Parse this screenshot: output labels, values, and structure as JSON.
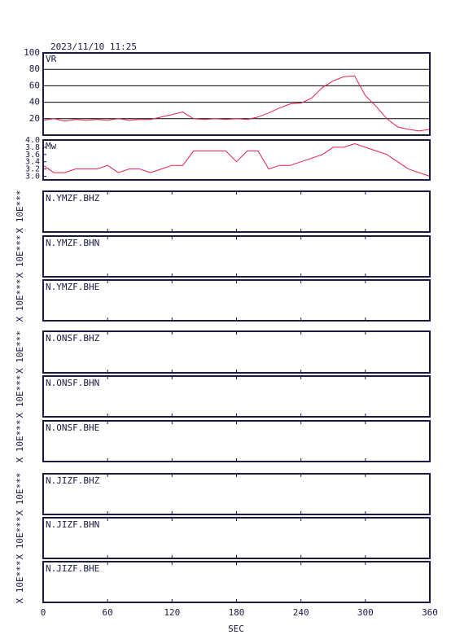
{
  "timestamp": "2023/11/10  11:25",
  "x_axis": {
    "label": "SEC",
    "xlim": [
      0,
      360
    ],
    "xticks": [
      0,
      60,
      120,
      180,
      240,
      300,
      360
    ]
  },
  "chart_data": [
    {
      "type": "line",
      "label": "VR",
      "color": "#e0204c",
      "grid": true,
      "ylim": [
        0,
        100
      ],
      "yticks": [
        20,
        40,
        60,
        80,
        100
      ],
      "x": [
        0,
        10,
        20,
        30,
        40,
        50,
        60,
        70,
        80,
        90,
        100,
        110,
        120,
        130,
        140,
        150,
        160,
        170,
        180,
        190,
        200,
        210,
        220,
        230,
        240,
        250,
        260,
        270,
        280,
        290,
        300,
        310,
        320,
        330,
        340,
        350,
        360
      ],
      "values": [
        18,
        20,
        17,
        19,
        18,
        19,
        18,
        20,
        18,
        19,
        19,
        22,
        25,
        28,
        20,
        19,
        20,
        19,
        20,
        19,
        22,
        27,
        33,
        38,
        39,
        45,
        58,
        66,
        71,
        72,
        48,
        35,
        20,
        10,
        7,
        5,
        7
      ]
    },
    {
      "type": "line",
      "label": "Mw",
      "color": "#e0204c",
      "grid": false,
      "ylim": [
        2.9,
        4.0
      ],
      "yticks": [
        {
          "value": 3.0,
          "label": "3.0"
        },
        3.2,
        3.4,
        3.6,
        3.8,
        {
          "value": 4.0,
          "label": "4.0"
        }
      ],
      "x": [
        0,
        10,
        20,
        30,
        40,
        50,
        60,
        70,
        80,
        90,
        100,
        110,
        120,
        130,
        140,
        150,
        160,
        170,
        180,
        190,
        200,
        210,
        220,
        230,
        240,
        250,
        260,
        270,
        280,
        290,
        300,
        310,
        320,
        330,
        340,
        350,
        360
      ],
      "values": [
        3.3,
        3.1,
        3.1,
        3.2,
        3.2,
        3.2,
        3.3,
        3.1,
        3.2,
        3.2,
        3.1,
        3.2,
        3.3,
        3.3,
        3.7,
        3.7,
        3.7,
        3.7,
        3.4,
        3.7,
        3.7,
        3.2,
        3.3,
        3.3,
        3.4,
        3.5,
        3.6,
        3.8,
        3.8,
        3.9,
        3.8,
        3.7,
        3.6,
        3.4,
        3.2,
        3.1,
        3.0
      ]
    },
    {
      "type": "waveform",
      "label": "N.YMZF.BHZ",
      "y_label": "X 10E***"
    },
    {
      "type": "waveform",
      "label": "N.YMZF.BHN",
      "y_label": "X 10E***"
    },
    {
      "type": "waveform",
      "label": "N.YMZF.BHE",
      "y_label": "X 10E***"
    },
    {
      "type": "waveform",
      "label": "N.ONSF.BHZ",
      "y_label": "X 10E***"
    },
    {
      "type": "waveform",
      "label": "N.ONSF.BHN",
      "y_label": "X 10E***"
    },
    {
      "type": "waveform",
      "label": "N.ONSF.BHE",
      "y_label": "X 10E***"
    },
    {
      "type": "waveform",
      "label": "N.JIZF.BHZ",
      "y_label": "X 10E***"
    },
    {
      "type": "waveform",
      "label": "N.JIZF.BHN",
      "y_label": "X 10E***"
    },
    {
      "type": "waveform",
      "label": "N.JIZF.BHE",
      "y_label": "X 10E***"
    }
  ]
}
